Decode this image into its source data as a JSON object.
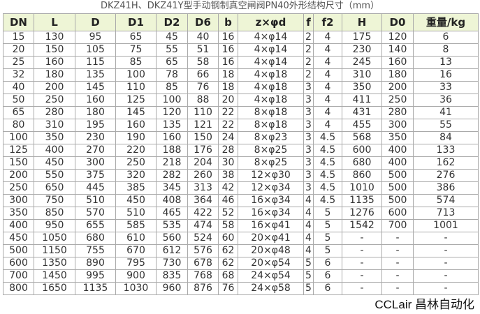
{
  "title": "DKZ41H、DKZ41Y型手动钢制真空闸阀PN40外形结构尺寸（mm）",
  "headers": [
    "DN",
    "L",
    "D",
    "D1",
    "D2",
    "D6",
    "b",
    "z×φd",
    "f",
    "f2",
    "H",
    "D0",
    "重量/kg"
  ],
  "rows": [
    [
      "15",
      "130",
      "95",
      "65",
      "45",
      "40",
      "16",
      "4×φ14",
      "2",
      "4",
      "175",
      "120",
      "6"
    ],
    [
      "20",
      "150",
      "105",
      "75",
      "55",
      "51",
      "16",
      "4×φ14",
      "2",
      "4",
      "230",
      "140",
      "8"
    ],
    [
      "25",
      "160",
      "115",
      "85",
      "65",
      "58",
      "16",
      "4×φ14",
      "2",
      "4",
      "245",
      "160",
      "13"
    ],
    [
      "32",
      "180",
      "135",
      "100",
      "78",
      "66",
      "18",
      "4×φ18",
      "2",
      "4",
      "310",
      "180",
      "16"
    ],
    [
      "40",
      "200",
      "145",
      "110",
      "85",
      "76",
      "18",
      "4×φ18",
      "3",
      "4",
      "350",
      "200",
      "33"
    ],
    [
      "50",
      "250",
      "160",
      "125",
      "100",
      "88",
      "20",
      "4×φ18",
      "3",
      "4",
      "411",
      "250",
      "36"
    ],
    [
      "65",
      "280",
      "180",
      "145",
      "120",
      "110",
      "22",
      "8×φ18",
      "3",
      "4",
      "431",
      "280",
      "41"
    ],
    [
      "80",
      "310",
      "195",
      "160",
      "135",
      "121",
      "22",
      "8×φ18",
      "3",
      "4",
      "455",
      "300",
      "55"
    ],
    [
      "100",
      "350",
      "230",
      "190",
      "160",
      "150",
      "24",
      "8×φ23",
      "3",
      "4.5",
      "568",
      "350",
      "84"
    ],
    [
      "125",
      "400",
      "270",
      "220",
      "188",
      "176",
      "28",
      "8×φ25",
      "3",
      "4.5",
      "600",
      "400",
      "133"
    ],
    [
      "150",
      "450",
      "300",
      "250",
      "218",
      "204",
      "30",
      "8×φ25",
      "3",
      "4.5",
      "680",
      "400",
      "162"
    ],
    [
      "200",
      "550",
      "375",
      "320",
      "282",
      "260",
      "38",
      "12×φ30",
      "3",
      "4.5",
      "860",
      "500",
      "276"
    ],
    [
      "250",
      "650",
      "445",
      "385",
      "345",
      "313",
      "42",
      "12×φ34",
      "3",
      "4.5",
      "1010",
      "500",
      "386"
    ],
    [
      "300",
      "750",
      "510",
      "450",
      "408",
      "364",
      "46",
      "16×φ34",
      "4",
      "4.5",
      "1135",
      "500",
      "574"
    ],
    [
      "350",
      "850",
      "570",
      "510",
      "465",
      "422",
      "52",
      "16×φ34",
      "4",
      "5",
      "1276",
      "600",
      "713"
    ],
    [
      "400",
      "950",
      "655",
      "585",
      "535",
      "474",
      "58",
      "16×φ41",
      "4",
      "5",
      "1542",
      "700",
      "1001"
    ],
    [
      "450",
      "1050",
      "680",
      "610",
      "560",
      "524",
      "60",
      "20×φ41",
      "4",
      "5",
      "-",
      "-",
      "-"
    ],
    [
      "500",
      "1150",
      "755",
      "670",
      "612",
      "576",
      "62",
      "20×φ48",
      "4",
      "5",
      "-",
      "-",
      "-"
    ],
    [
      "600",
      "1350",
      "890",
      "795",
      "730",
      "678",
      "62",
      "20×φ54",
      "5",
      "6",
      "-",
      "-",
      "-"
    ],
    [
      "700",
      "1450",
      "995",
      "900",
      "835",
      "768",
      "68",
      "24×φ54",
      "5",
      "6",
      "-",
      "-",
      "-"
    ],
    [
      "800",
      "1650",
      "1135",
      "1030",
      "960",
      "876",
      "76",
      "24×φ58",
      "5",
      "6",
      "-",
      "-",
      "-"
    ]
  ],
  "watermark": "CCLair 昌林自动化",
  "colors": {
    "header_bg": "#eef5d6",
    "border": "#aaaaaa"
  }
}
